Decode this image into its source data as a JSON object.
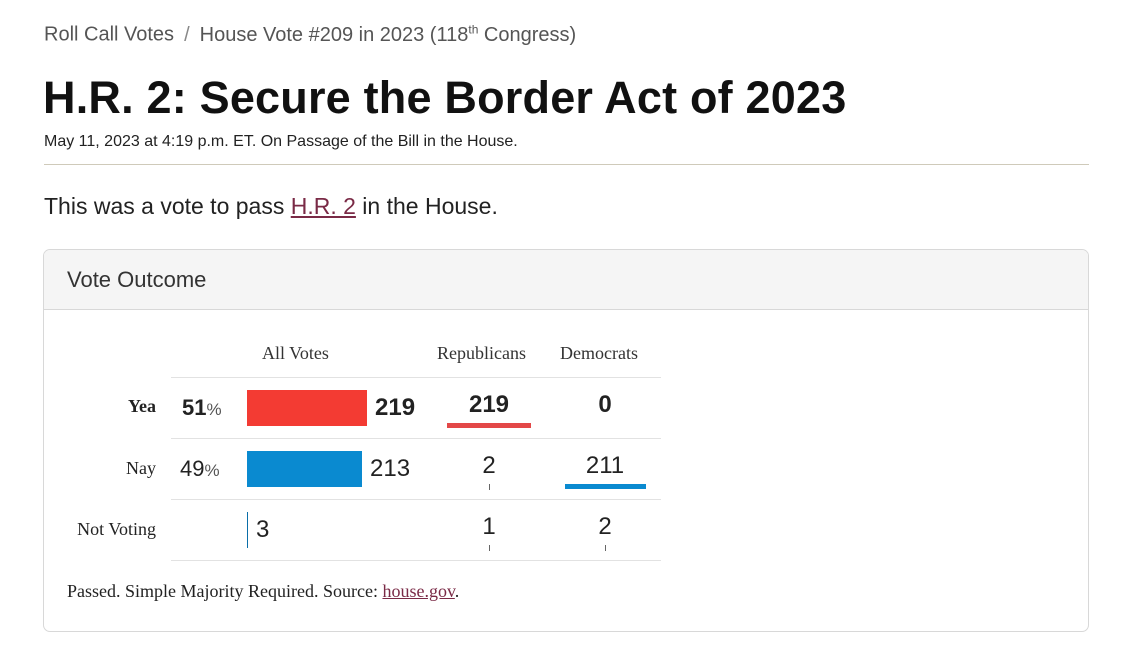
{
  "breadcrumb": {
    "root": "Roll Call Votes",
    "separator": "/",
    "current_prefix": "House Vote #209 in 2023 (118",
    "current_sup": "th",
    "current_suffix": " Congress)"
  },
  "page": {
    "title": "H.R. 2: Secure the Border Act of 2023",
    "subtitle": "May 11, 2023 at 4:19 p.m. ET. On Passage of the Bill in the House.",
    "intro_before": "This was a vote to pass ",
    "intro_link": "H.R. 2",
    "intro_after": " in the House."
  },
  "outcome": {
    "heading": "Vote Outcome",
    "columns": {
      "all": "All Votes",
      "rep": "Republicans",
      "dem": "Democrats"
    },
    "rows": [
      {
        "label": "Yea",
        "pct_value": "51",
        "pct_sign": "%",
        "total": "219",
        "total_fraction": 0.51,
        "rep": "219",
        "dem": "0"
      },
      {
        "label": "Nay",
        "pct_value": "49",
        "pct_sign": "%",
        "total": "213",
        "total_fraction": 0.49,
        "rep": "2",
        "dem": "211"
      },
      {
        "label": "Not Voting",
        "pct_value": "",
        "pct_sign": "",
        "total": "3",
        "total_fraction": 0.0,
        "rep": "1",
        "dem": "2"
      }
    ],
    "footer_text": "Passed. Simple Majority Required. Source: ",
    "footer_link": "house.gov",
    "footer_end": "."
  },
  "colors": {
    "yea": "#f33b33",
    "nay": "#0a8ad0",
    "link": "#7a2a46",
    "rep_underline": "#e34848",
    "dem_underline": "#0a8ad0"
  }
}
